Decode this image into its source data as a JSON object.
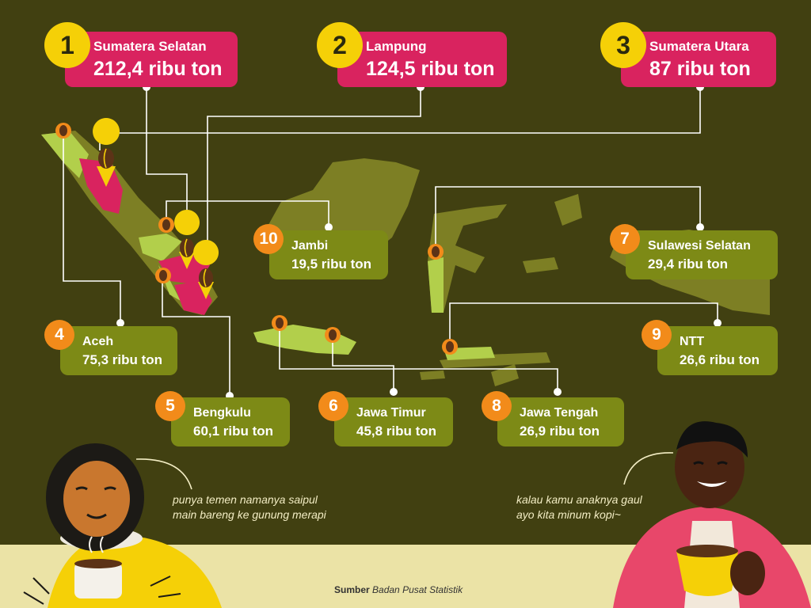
{
  "colors": {
    "background": "#414011",
    "map_land": "#7d7f24",
    "highlight_pink": "#d9235f",
    "highlight_green": "#b2cf4b",
    "top_badge": "#f5d007",
    "rank_badge": "#f28b1a",
    "label_green": "#7d8a16",
    "footer": "#ebe3a6"
  },
  "rankings": [
    {
      "rank": "1",
      "region": "Sumatera Selatan",
      "value": "212,4 ribu ton"
    },
    {
      "rank": "2",
      "region": "Lampung",
      "value": "124,5 ribu ton"
    },
    {
      "rank": "3",
      "region": "Sumatera Utara",
      "value": "87 ribu ton"
    },
    {
      "rank": "4",
      "region": "Aceh",
      "value": "75,3 ribu ton"
    },
    {
      "rank": "5",
      "region": "Bengkulu",
      "value": "60,1 ribu ton"
    },
    {
      "rank": "6",
      "region": "Jawa Timur",
      "value": "45,8 ribu ton"
    },
    {
      "rank": "7",
      "region": "Sulawesi Selatan",
      "value": "29,4 ribu ton"
    },
    {
      "rank": "8",
      "region": "Jawa Tengah",
      "value": "26,9 ribu ton"
    },
    {
      "rank": "9",
      "region": "NTT",
      "value": "26,6 ribu ton"
    },
    {
      "rank": "10",
      "region": "Jambi",
      "value": "19,5 ribu ton"
    }
  ],
  "quotes": {
    "left_line1": "punya temen namanya saipul",
    "left_line2": "main bareng ke gunung merapi",
    "right_line1": "kalau kamu anaknya gaul",
    "right_line2": "ayo kita minum kopi~"
  },
  "source": {
    "label": "Sumber",
    "text": "Badan Pusat Statistik"
  }
}
